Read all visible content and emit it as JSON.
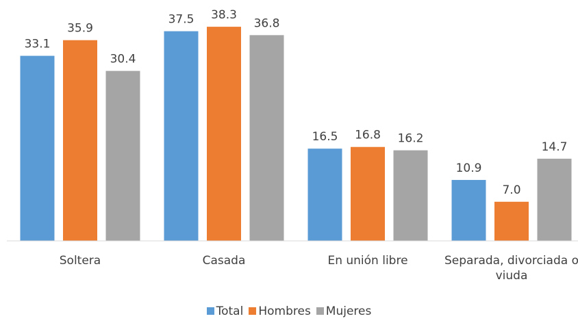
{
  "chart_data": {
    "type": "bar",
    "categories": [
      "Soltera",
      "Casada",
      "En unión libre",
      "Separada, divorciada o viuda"
    ],
    "series": [
      {
        "name": "Total",
        "color": "#5b9bd5",
        "values": [
          33.1,
          37.5,
          16.5,
          10.9
        ],
        "value_labels": [
          "33.1",
          "37.5",
          "16.5",
          "10.9"
        ]
      },
      {
        "name": "Hombres",
        "color": "#ed7d31",
        "values": [
          35.9,
          38.3,
          16.8,
          7.0
        ],
        "value_labels": [
          "35.9",
          "38.3",
          "16.8",
          "7.0"
        ]
      },
      {
        "name": "Mujeres",
        "color": "#a5a5a5",
        "values": [
          30.4,
          36.8,
          16.2,
          14.7
        ],
        "value_labels": [
          "30.4",
          "36.8",
          "16.2",
          "14.7"
        ]
      }
    ],
    "ylim": [
      0,
      40
    ],
    "legend": "bottom"
  }
}
